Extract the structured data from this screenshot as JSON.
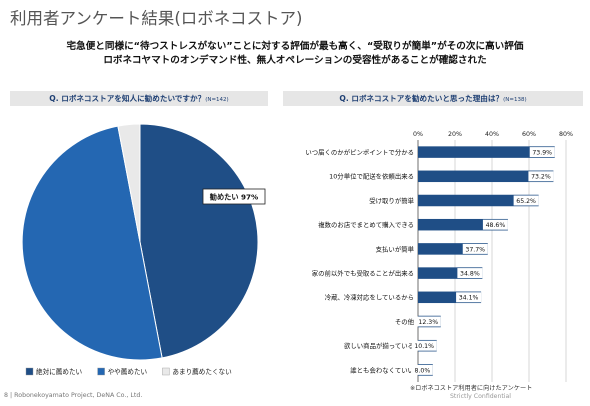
{
  "page": {
    "title": "利用者アンケート結果(ロボネコストア)",
    "lead_line1": "宅急便と同様に“待つストレスがない”ことに対する評価が最も高く、“受取りが簡単”がその次に高い評価",
    "lead_line2": "ロボネコヤマトのオンデマンド性、無人オペレーションの受容性があることが確認された",
    "footer_left": "8 | Robonekoyamato Project, DeNA Co., Ltd.",
    "footer_note": "※ロボネコストア利用者に向けたアンケート",
    "footer_right": "Strictly Confidential"
  },
  "colors": {
    "dark_blue": "#1f4e86",
    "mid_blue": "#2467b2",
    "light_gray": "#e9e9e9",
    "header_bg": "#e6e6e6",
    "header_text": "#1e3f73"
  },
  "chart_data": [
    {
      "type": "pie",
      "title": "Q. ロボネコストアを知人に勧めたいですか？",
      "n_label": "(N=142)",
      "slices": [
        {
          "label": "絶対に薦めたい",
          "value": 47,
          "color": "#1f4e86"
        },
        {
          "label": "やや薦めたい",
          "value": 50,
          "color": "#2467b2"
        },
        {
          "label": "あまり薦めたくない",
          "value": 3,
          "color": "#e9e9e9"
        }
      ],
      "callout": "勧めたい 97%",
      "legend_placement": "bottom"
    },
    {
      "type": "bar",
      "orientation": "horizontal",
      "title": "Q. ロボネコストアを勧めたいと思った理由は？",
      "n_label": "(N=138)",
      "categories": [
        "いつ届くのかがピンポイントで分かる",
        "10分単位で配送を依頼出来る",
        "受け取りが簡単",
        "複数のお店でまとめて購入できる",
        "支払いが簡単",
        "家の前以外でも受取ることが出来る",
        "冷蔵、冷凍対応をしているから",
        "その他",
        "欲しい商品が揃っている",
        "誰とも会わなくていい"
      ],
      "values": [
        73.9,
        73.2,
        65.2,
        48.6,
        37.7,
        34.8,
        34.1,
        12.3,
        10.1,
        8.0
      ],
      "value_labels": [
        "73.9%",
        "73.2%",
        "65.2%",
        "48.6%",
        "37.7%",
        "34.8%",
        "34.1%",
        "12.3%",
        "10.1%",
        "8.0%"
      ],
      "xlim": [
        0,
        80
      ],
      "xticks": [
        "0%",
        "20%",
        "40%",
        "60%",
        "80%"
      ],
      "color": "#1f4e86"
    }
  ]
}
